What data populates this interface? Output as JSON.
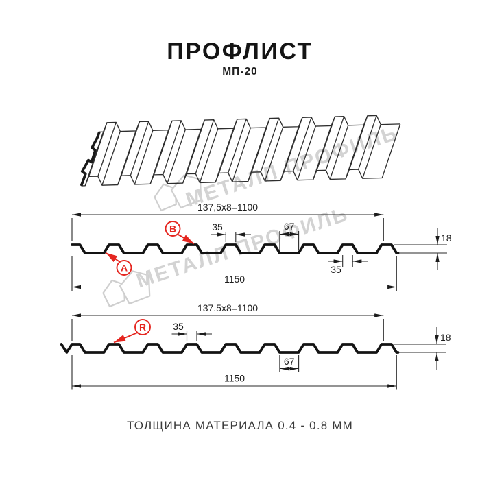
{
  "page": {
    "title": "ПРОФЛИСТ",
    "subtitle": "МП-20",
    "footer": "ТОЛЩИНА МАТЕРИАЛА 0.4 - 0.8 ММ"
  },
  "watermark": {
    "brand": "МЕТАЛЛ ПРОФИЛЬ"
  },
  "colors": {
    "ink": "#131313",
    "dim_line": "#2a2a2a",
    "accent_red": "#e52620",
    "watermark": "#d3d3d3"
  },
  "profile_top": {
    "labels": {
      "a": "A",
      "b": "B"
    },
    "dims": {
      "width_formula": "137,5x8=1100",
      "crest_width": "35",
      "valley_width": "67",
      "height": "18",
      "total_width": "1150",
      "crest_width_bottom": "35"
    }
  },
  "profile_bottom": {
    "labels": {
      "r": "R"
    },
    "dims": {
      "width_formula": "137.5x8=1100",
      "crest_width": "35",
      "valley_width": "67",
      "height": "18",
      "total_width": "1150"
    }
  }
}
